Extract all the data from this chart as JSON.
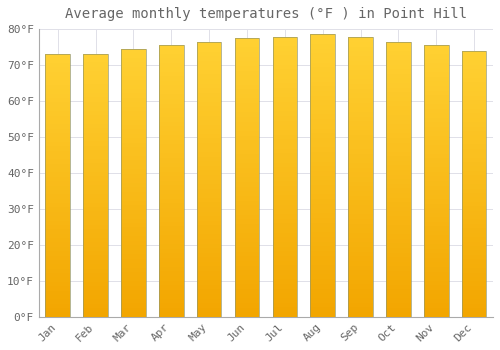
{
  "title": "Average monthly temperatures (°F ) in Point Hill",
  "months": [
    "Jan",
    "Feb",
    "Mar",
    "Apr",
    "May",
    "Jun",
    "Jul",
    "Aug",
    "Sep",
    "Oct",
    "Nov",
    "Dec"
  ],
  "values": [
    73.0,
    73.2,
    74.5,
    75.7,
    76.3,
    77.5,
    77.9,
    78.5,
    77.7,
    76.5,
    75.5,
    73.8
  ],
  "bar_color_bottom": "#F5A800",
  "bar_color_top": "#FFD040",
  "bar_edge_color": "#B8860B",
  "background_color": "#FFFFFF",
  "plot_bg_color": "#FFFFFF",
  "grid_color": "#E0E0E8",
  "text_color": "#666666",
  "ylim": [
    0,
    80
  ],
  "yticks": [
    0,
    10,
    20,
    30,
    40,
    50,
    60,
    70,
    80
  ],
  "title_fontsize": 10,
  "tick_fontsize": 8,
  "bar_width": 0.65
}
